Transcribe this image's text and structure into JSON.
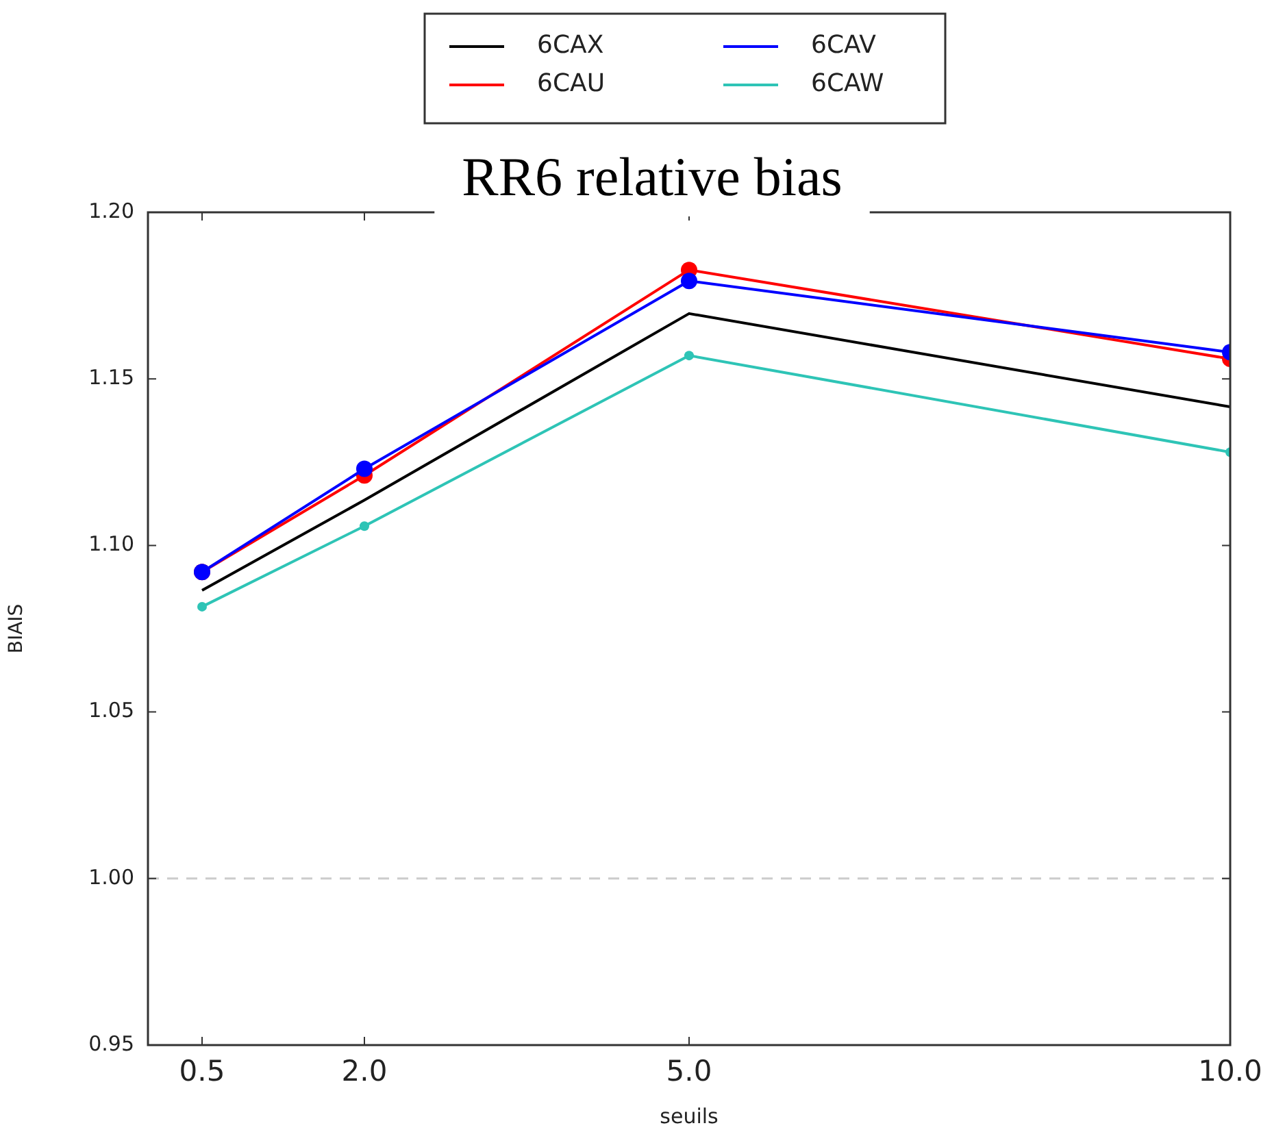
{
  "chart_data": {
    "type": "line",
    "title": "RR6 relative bias",
    "xlabel": "seuils",
    "ylabel": "BIAIS",
    "x": [
      0.5,
      2.0,
      5.0,
      10.0
    ],
    "series": [
      {
        "name": "6CAX",
        "color": "#000000",
        "values": [
          1.0865,
          1.1136,
          1.1696,
          1.1416
        ],
        "marker": "none"
      },
      {
        "name": "6CAU",
        "color": "#ff0000",
        "values": [
          1.092,
          1.121,
          1.1827,
          1.156
        ],
        "marker": "circle"
      },
      {
        "name": "6CAV",
        "color": "#0000ff",
        "values": [
          1.092,
          1.123,
          1.1794,
          1.158
        ],
        "marker": "circle"
      },
      {
        "name": "6CAW",
        "color": "#2ec4b6",
        "values": [
          1.0816,
          1.1058,
          1.157,
          1.128
        ],
        "marker": "circle"
      }
    ],
    "xlim": [
      0,
      10
    ],
    "xticks": [
      {
        "value": 0.5,
        "label": "0.5"
      },
      {
        "value": 2.0,
        "label": "2.0"
      },
      {
        "value": 5.0,
        "label": "5.0"
      },
      {
        "value": 10.0,
        "label": "10.0"
      }
    ],
    "ylim": [
      0.95,
      1.2
    ],
    "yticks": [
      {
        "value": 0.95,
        "label": "0.95"
      },
      {
        "value": 1.0,
        "label": "1.00"
      },
      {
        "value": 1.05,
        "label": "1.05"
      },
      {
        "value": 1.1,
        "label": "1.10"
      },
      {
        "value": 1.15,
        "label": "1.15"
      },
      {
        "value": 1.2,
        "label": "1.20"
      }
    ],
    "ref_lines": [
      {
        "axis": "y",
        "value": 1.0,
        "color": "#cccccc",
        "line_style": "dashed"
      }
    ],
    "grid": false,
    "legend": "top",
    "line_style": "solid"
  }
}
